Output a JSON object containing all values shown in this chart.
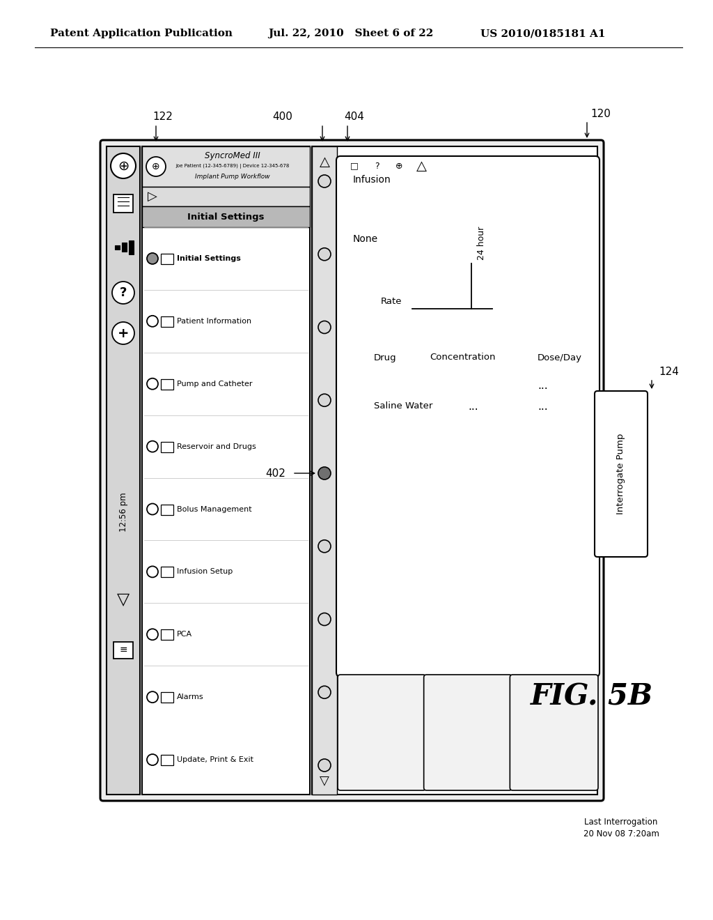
{
  "header_left": "Patent Application Publication",
  "header_mid": "Jul. 22, 2010   Sheet 6 of 22",
  "header_right": "US 2010/0185181 A1",
  "fig_label": "FIG. 5B",
  "label_120": "120",
  "label_122": "122",
  "label_124": "124",
  "label_400": "400",
  "label_402": "402",
  "label_404": "404",
  "sidebar_time": "12:56 pm",
  "app_title": "SyncroMed III",
  "patient_info": "Joe Patient (12-345-6789) | Device 12-345-678",
  "workflow": "Implant Pump Workflow",
  "menu_title": "Initial Settings",
  "menu_items": [
    "Initial Settings",
    "Patient Information",
    "Pump and Catheter",
    "Reservoir and Drugs",
    "Bolus Management",
    "Infusion Setup",
    "PCA",
    "Alarms",
    "Update, Print & Exit"
  ],
  "infusion_label": "Infusion",
  "none_label": "None",
  "rate_label": "Rate",
  "drug_label": "Drug",
  "concentration_label": "Concentration",
  "saline_water_label": "Saline Water",
  "hour_label": "24 hour",
  "dose_day_label": "Dose/Day",
  "dots": "...",
  "interrogate_btn": "Interrogate Pump",
  "last_interr": "Last Interrogation",
  "last_interr_date": "20 Nov 08 7:20am",
  "bg_color": "#ffffff"
}
